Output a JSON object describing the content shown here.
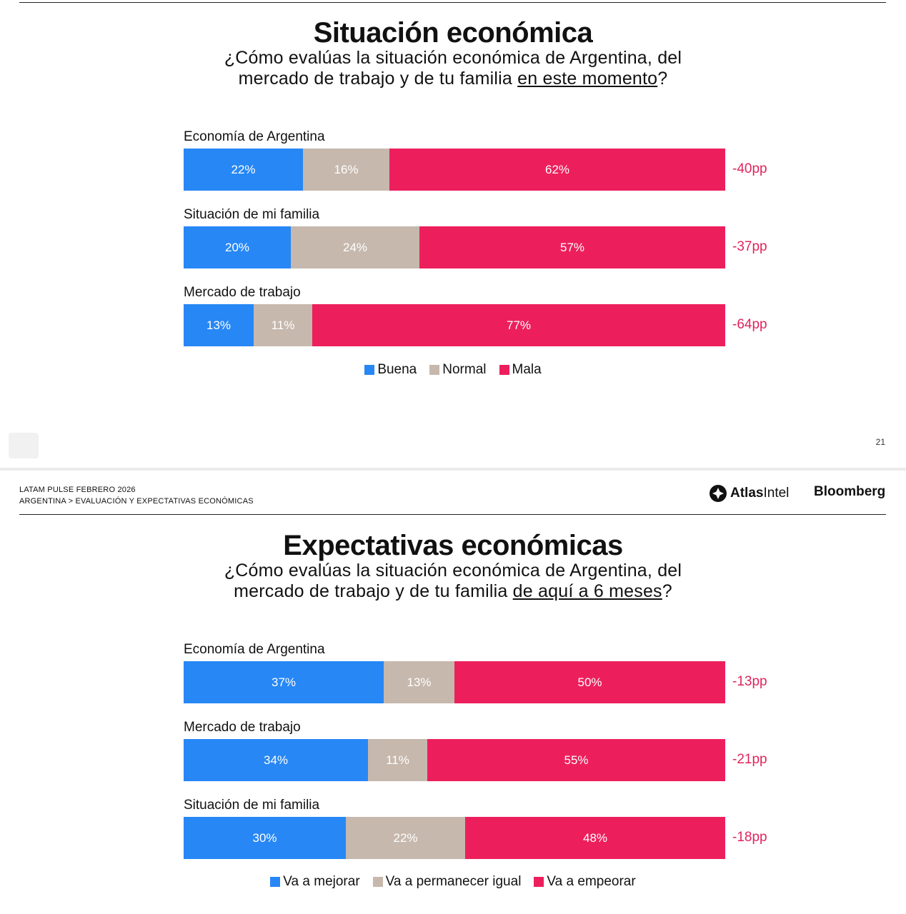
{
  "page_number": "21",
  "header": {
    "report": "LATAM PULSE FEBRERO 2026",
    "breadcrumb": "ARGENTINA > EVALUACIÓN Y EXPECTATIVAS ECONÓMICAS",
    "brand_atlas_bold": "Atlas",
    "brand_atlas_light": "Intel",
    "brand_bloomberg": "Bloomberg"
  },
  "colors": {
    "blue": "#2787f5",
    "beige": "#c6b8ad",
    "pink": "#ec1f5c",
    "net": "#e0245e"
  },
  "chart_data": [
    {
      "type": "bar",
      "orientation": "horizontal-stacked-100",
      "title": "Situación económica",
      "subtitle_pre": "¿Cómo evalúas la situación económica de Argentina, del",
      "subtitle_line2_pre": "mercado de trabajo y de tu familia ",
      "subtitle_underlined": "en este momento",
      "subtitle_post": "?",
      "categories": [
        "Economía de Argentina",
        "Situación de mi familia",
        "Mercado de trabajo"
      ],
      "series": [
        {
          "name": "Buena",
          "values": [
            22,
            20,
            13
          ],
          "labels": [
            "22%",
            "20%",
            "13%"
          ]
        },
        {
          "name": "Normal",
          "values": [
            16,
            24,
            11
          ],
          "labels": [
            "16%",
            "24%",
            "11%"
          ]
        },
        {
          "name": "Mala",
          "values": [
            62,
            57,
            77
          ],
          "labels": [
            "62%",
            "57%",
            "77%"
          ]
        }
      ],
      "net": [
        "-40pp",
        "-37pp",
        "-64pp"
      ],
      "legend_position": "bottom-center"
    },
    {
      "type": "bar",
      "orientation": "horizontal-stacked-100",
      "title": "Expectativas económicas",
      "subtitle_pre": "¿Cómo evalúas la situación económica de Argentina, del",
      "subtitle_line2_pre": "mercado de trabajo y de tu familia ",
      "subtitle_underlined": "de aquí a 6 meses",
      "subtitle_post": "?",
      "categories": [
        "Economía de Argentina",
        "Mercado de trabajo",
        "Situación de mi familia"
      ],
      "series": [
        {
          "name": "Va a mejorar",
          "values": [
            37,
            34,
            30
          ],
          "labels": [
            "37%",
            "34%",
            "30%"
          ]
        },
        {
          "name": "Va a permanecer igual",
          "values": [
            13,
            11,
            22
          ],
          "labels": [
            "13%",
            "11%",
            "22%"
          ]
        },
        {
          "name": "Va a empeorar",
          "values": [
            50,
            55,
            48
          ],
          "labels": [
            "50%",
            "55%",
            "48%"
          ]
        }
      ],
      "net": [
        "-13pp",
        "-21pp",
        "-18pp"
      ],
      "legend_position": "bottom-center"
    }
  ]
}
